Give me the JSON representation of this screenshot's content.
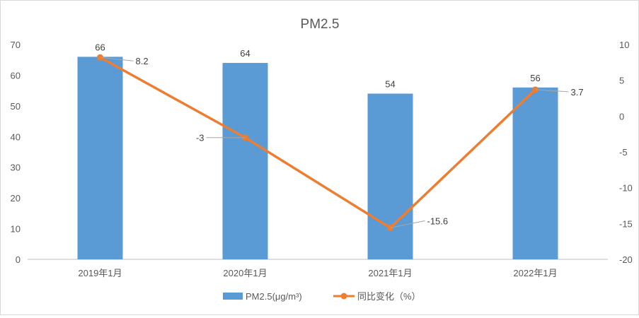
{
  "chart_data": {
    "type": "bar",
    "title": "PM2.5",
    "categories": [
      "2019年1月",
      "2020年1月",
      "2021年1月",
      "2022年1月"
    ],
    "series": [
      {
        "name": "PM2.5(μg/m³)",
        "type": "bar",
        "axis": "left",
        "color": "#5b9bd5",
        "values": [
          66,
          64,
          54,
          56
        ]
      },
      {
        "name": "同比变化（%）",
        "type": "line",
        "axis": "right",
        "color": "#ed7d31",
        "values": [
          8.2,
          -3,
          -15.6,
          3.7
        ]
      }
    ],
    "ylim_left": [
      0,
      70
    ],
    "yticks_left": [
      "0",
      "10",
      "20",
      "30",
      "40",
      "50",
      "60",
      "70"
    ],
    "ylim_right": [
      -20,
      10
    ],
    "yticks_right": [
      "-20",
      "-15",
      "-10",
      "-5",
      "0",
      "5",
      "10"
    ],
    "bar_labels": [
      "66",
      "64",
      "54",
      "56"
    ],
    "line_labels": [
      "8.2",
      "-3",
      "-15.6",
      "3.7"
    ],
    "grid": false,
    "legend_position": "bottom"
  }
}
